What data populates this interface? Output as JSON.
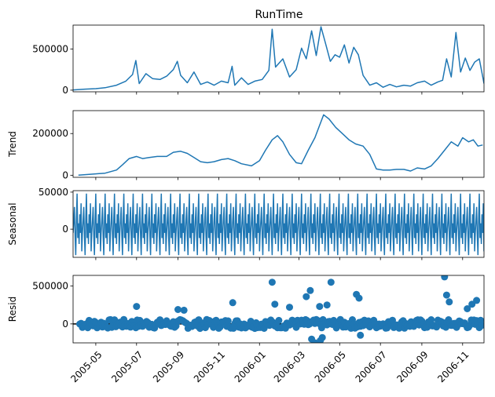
{
  "chart_data": {
    "type": "line",
    "figure_title": "RunTime",
    "x_start": "2005-03-28",
    "x_end": "2006-12-03",
    "xtick_labels": [
      "2005-05",
      "2005-07",
      "2005-09",
      "2005-11",
      "2006-01",
      "2006-03",
      "2006-05",
      "2006-07",
      "2006-09",
      "2006-11"
    ],
    "color": "#1f77b4",
    "panels": [
      {
        "id": "observed",
        "type": "line",
        "ylabel": "",
        "ylim": [
          -20000,
          790000
        ],
        "yticks": [
          0,
          500000
        ],
        "ytick_labels": [
          "0",
          "500000"
        ],
        "series": {
          "x": [
            "2005-03-28",
            "2005-04-15",
            "2005-05-01",
            "2005-05-15",
            "2005-06-01",
            "2005-06-15",
            "2005-06-25",
            "2005-06-30",
            "2005-07-05",
            "2005-07-15",
            "2005-07-25",
            "2005-08-05",
            "2005-08-15",
            "2005-08-25",
            "2005-08-31",
            "2005-09-05",
            "2005-09-15",
            "2005-09-25",
            "2005-10-05",
            "2005-10-15",
            "2005-10-25",
            "2005-11-05",
            "2005-11-15",
            "2005-11-21",
            "2005-11-25",
            "2005-12-05",
            "2005-12-15",
            "2005-12-25",
            "2006-01-05",
            "2006-01-15",
            "2006-01-20",
            "2006-01-25",
            "2006-02-05",
            "2006-02-15",
            "2006-02-25",
            "2006-03-05",
            "2006-03-12",
            "2006-03-20",
            "2006-03-27",
            "2006-04-03",
            "2006-04-10",
            "2006-04-17",
            "2006-04-24",
            "2006-05-01",
            "2006-05-08",
            "2006-05-15",
            "2006-05-22",
            "2006-05-29",
            "2006-06-05",
            "2006-06-15",
            "2006-06-25",
            "2006-07-05",
            "2006-07-15",
            "2006-07-25",
            "2006-08-05",
            "2006-08-15",
            "2006-08-25",
            "2006-09-05",
            "2006-09-15",
            "2006-09-25",
            "2006-10-02",
            "2006-10-08",
            "2006-10-15",
            "2006-10-22",
            "2006-10-29",
            "2006-11-05",
            "2006-11-12",
            "2006-11-19",
            "2006-11-26",
            "2006-12-03"
          ],
          "y": [
            3000,
            12000,
            18000,
            30000,
            60000,
            110000,
            190000,
            360000,
            80000,
            200000,
            140000,
            130000,
            170000,
            250000,
            350000,
            180000,
            90000,
            220000,
            70000,
            100000,
            60000,
            110000,
            90000,
            290000,
            60000,
            150000,
            70000,
            110000,
            130000,
            240000,
            740000,
            280000,
            380000,
            160000,
            250000,
            510000,
            380000,
            720000,
            420000,
            770000,
            560000,
            350000,
            430000,
            400000,
            550000,
            330000,
            520000,
            430000,
            180000,
            60000,
            90000,
            35000,
            70000,
            40000,
            60000,
            50000,
            90000,
            110000,
            60000,
            100000,
            120000,
            380000,
            160000,
            700000,
            220000,
            390000,
            240000,
            340000,
            380000,
            80000
          ]
        }
      },
      {
        "id": "trend",
        "type": "line",
        "ylabel": "Trend",
        "ylim": [
          -10000,
          310000
        ],
        "yticks": [
          0,
          200000
        ],
        "ytick_labels": [
          "0",
          "200000"
        ],
        "series": {
          "x": [
            "2005-04-05",
            "2005-04-25",
            "2005-05-15",
            "2005-06-01",
            "2005-06-10",
            "2005-06-20",
            "2005-07-01",
            "2005-07-10",
            "2005-07-20",
            "2005-08-01",
            "2005-08-15",
            "2005-08-25",
            "2005-09-05",
            "2005-09-15",
            "2005-09-25",
            "2005-10-05",
            "2005-10-15",
            "2005-10-25",
            "2005-11-05",
            "2005-11-15",
            "2005-11-25",
            "2005-12-05",
            "2005-12-20",
            "2006-01-01",
            "2006-01-10",
            "2006-01-20",
            "2006-01-28",
            "2006-02-05",
            "2006-02-15",
            "2006-02-25",
            "2006-03-05",
            "2006-03-15",
            "2006-03-25",
            "2006-04-01",
            "2006-04-07",
            "2006-04-15",
            "2006-04-25",
            "2006-05-05",
            "2006-05-15",
            "2006-05-25",
            "2006-06-05",
            "2006-06-15",
            "2006-06-25",
            "2006-07-05",
            "2006-07-15",
            "2006-07-25",
            "2006-08-05",
            "2006-08-15",
            "2006-08-25",
            "2006-09-05",
            "2006-09-15",
            "2006-09-25",
            "2006-10-05",
            "2006-10-15",
            "2006-10-25",
            "2006-11-01",
            "2006-11-10",
            "2006-11-17",
            "2006-11-24",
            "2006-12-01"
          ],
          "y": [
            0,
            5000,
            10000,
            25000,
            50000,
            80000,
            90000,
            80000,
            85000,
            90000,
            90000,
            110000,
            115000,
            105000,
            85000,
            65000,
            60000,
            65000,
            75000,
            80000,
            70000,
            55000,
            45000,
            70000,
            120000,
            170000,
            190000,
            160000,
            100000,
            60000,
            55000,
            120000,
            180000,
            240000,
            290000,
            270000,
            230000,
            200000,
            170000,
            150000,
            140000,
            100000,
            30000,
            25000,
            25000,
            28000,
            28000,
            20000,
            35000,
            30000,
            45000,
            80000,
            120000,
            160000,
            140000,
            180000,
            160000,
            170000,
            140000,
            145000
          ]
        }
      },
      {
        "id": "seasonal",
        "type": "line",
        "ylabel": "Seasonal",
        "ylim": [
          -38000,
          52000
        ],
        "yticks": [
          0,
          50000
        ],
        "ytick_labels": [
          "0",
          "50000"
        ],
        "period": 14,
        "pattern": [
          -5000,
          12000,
          30000,
          -10000,
          -35000,
          15000,
          48000,
          -12000,
          8000,
          -20000,
          20000,
          -5000,
          35000,
          -30000
        ]
      },
      {
        "id": "resid",
        "type": "scatter",
        "ylabel": "Resid",
        "ylim": [
          -250000,
          640000
        ],
        "yticks": [
          0,
          500000
        ],
        "ytick_labels": [
          "0",
          "500000"
        ],
        "zero_line": true,
        "outliers": {
          "x": [
            "2005-07-01",
            "2005-09-01",
            "2005-09-10",
            "2005-11-22",
            "2006-01-20",
            "2006-01-24",
            "2006-02-15",
            "2006-03-12",
            "2006-03-18",
            "2006-04-01",
            "2006-04-12",
            "2006-04-18",
            "2006-05-26",
            "2006-05-30",
            "2006-10-05",
            "2006-10-08",
            "2006-10-12",
            "2006-11-08",
            "2006-11-15",
            "2006-11-22",
            "2006-03-20",
            "2006-03-25",
            "2006-04-02",
            "2006-04-05",
            "2006-06-01"
          ],
          "y": [
            230000,
            190000,
            180000,
            280000,
            550000,
            260000,
            220000,
            360000,
            440000,
            230000,
            250000,
            550000,
            390000,
            340000,
            620000,
            380000,
            290000,
            200000,
            260000,
            310000,
            -200000,
            -250000,
            -220000,
            -180000,
            -150000
          ]
        }
      }
    ]
  }
}
